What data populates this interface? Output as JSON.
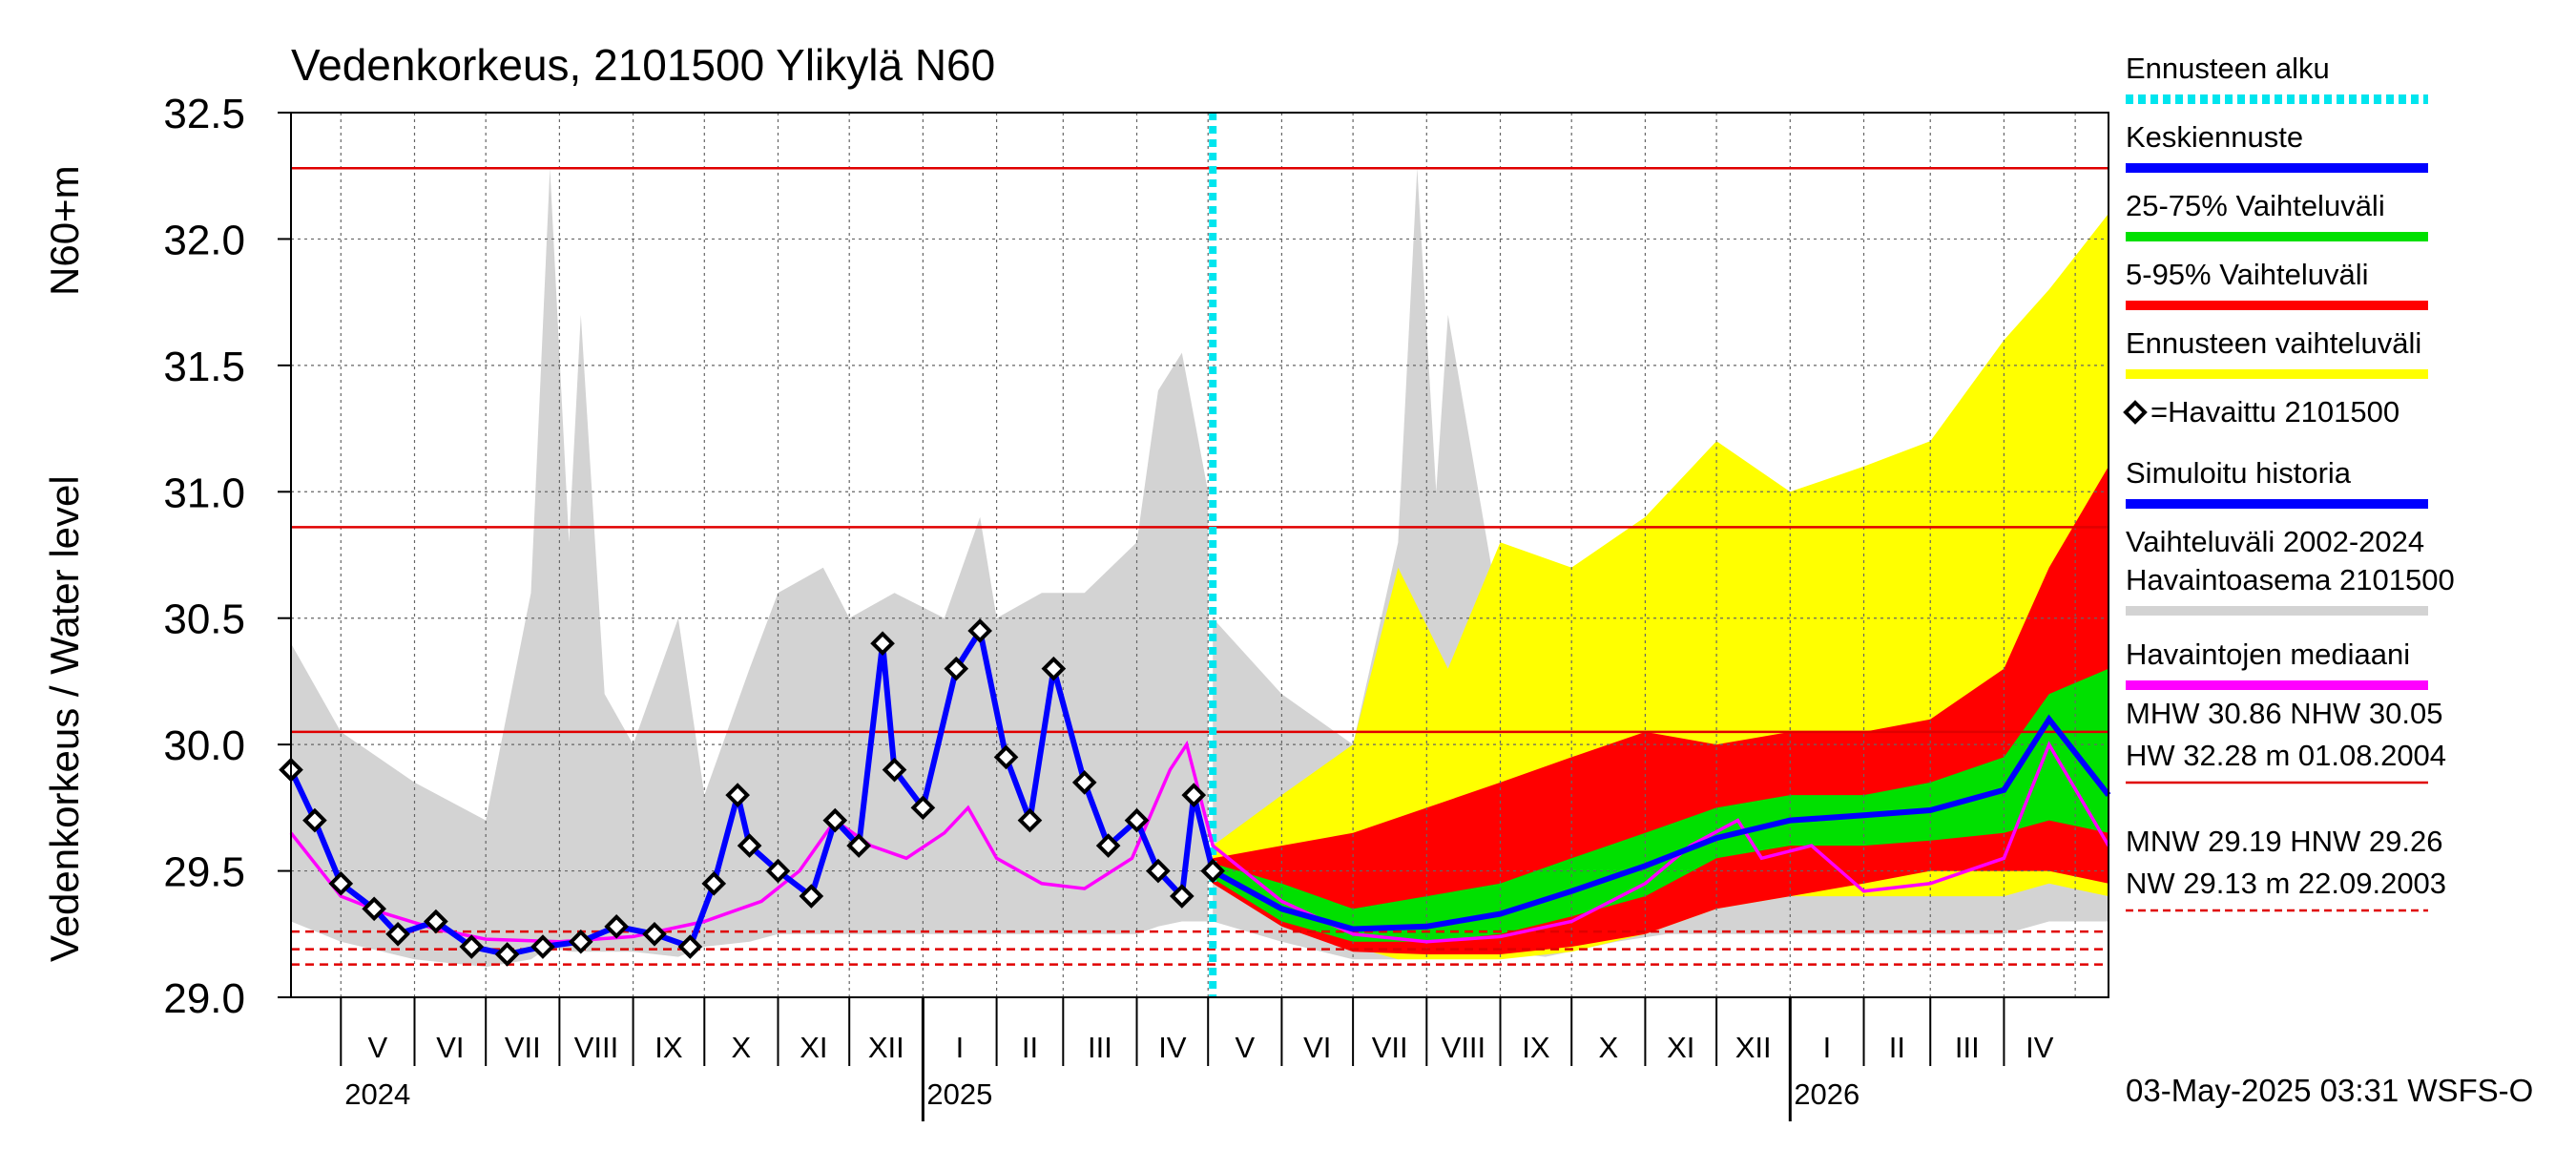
{
  "chart_data": {
    "type": "line",
    "title": "Vedenkorkeus, 2101500 Ylikylä N60",
    "ylabel_left": "Vedenkorkeus / Water level",
    "ylabel_unit": "N60+m",
    "ylim": [
      29.0,
      32.5
    ],
    "y_ticks": [
      "29.0",
      "29.5",
      "30.0",
      "30.5",
      "31.0",
      "31.5",
      "32.0",
      "32.5"
    ],
    "x_start": "2024-04-10",
    "x_end": "2026-05-15",
    "forecast_start": "2025-05-03",
    "month_labels": [
      "V",
      "VI",
      "VII",
      "VIII",
      "IX",
      "X",
      "XI",
      "XII",
      "I",
      "II",
      "III",
      "IV",
      "V",
      "VI",
      "VII",
      "VIII",
      "IX",
      "X",
      "XI",
      "XII",
      "I",
      "II",
      "III",
      "IV"
    ],
    "year_labels": [
      "2024",
      "2025",
      "2026"
    ],
    "reference_lines": {
      "HW": 32.28,
      "MHW": 30.86,
      "NHW": 30.05,
      "MNW": 29.19,
      "HNW": 29.26,
      "NW": 29.13
    },
    "legend": [
      {
        "label": "Ennusteen alku",
        "color": "#00e5ee",
        "style": "dotted"
      },
      {
        "label": "Keskiennuste",
        "color": "#0000ff",
        "style": "solid"
      },
      {
        "label": "25-75% Vaihteluväli",
        "color": "#00e000",
        "style": "solid"
      },
      {
        "label": "5-95% Vaihteluväli",
        "color": "#ff0000",
        "style": "solid"
      },
      {
        "label": "Ennusteen vaihteluväli",
        "color": "#ffff00",
        "style": "solid"
      },
      {
        "label": "=Havaittu 2101500",
        "color": "#000000",
        "style": "diamond"
      },
      {
        "label": "Simuloitu historia",
        "color": "#0000ff",
        "style": "solid"
      },
      {
        "label": "Vaihteluväli 2002-2024",
        "label2": " Havaintoasema 2101500",
        "color": "#d3d3d3",
        "style": "solid"
      },
      {
        "label": "Havaintojen mediaani",
        "color": "#ff00ff",
        "style": "solid"
      }
    ],
    "stats_text": [
      "MHW  30.86 NHW  30.05",
      "HW  32.28 m 01.08.2004",
      "MNW  29.19 HNW  29.26",
      "NW  29.13 m 22.09.2003"
    ],
    "footer": "03-May-2025 03:31 WSFS-O",
    "series": {
      "history_range": [
        [
          "2024-04-10",
          29.3,
          30.4
        ],
        [
          "2024-05-01",
          29.22,
          30.05
        ],
        [
          "2024-06-01",
          29.15,
          29.85
        ],
        [
          "2024-07-01",
          29.12,
          29.7
        ],
        [
          "2024-07-20",
          29.15,
          30.6
        ],
        [
          "2024-07-28",
          29.2,
          32.28
        ],
        [
          "2024-08-05",
          29.18,
          30.8
        ],
        [
          "2024-08-10",
          29.18,
          31.7
        ],
        [
          "2024-08-20",
          29.18,
          30.2
        ],
        [
          "2024-09-01",
          29.18,
          30.0
        ],
        [
          "2024-09-20",
          29.16,
          30.5
        ],
        [
          "2024-10-01",
          29.2,
          29.8
        ],
        [
          "2024-10-20",
          29.22,
          30.3
        ],
        [
          "2024-11-01",
          29.25,
          30.6
        ],
        [
          "2024-11-20",
          29.25,
          30.7
        ],
        [
          "2024-12-01",
          29.25,
          30.5
        ],
        [
          "2024-12-20",
          29.25,
          30.6
        ],
        [
          "2025-01-10",
          29.25,
          30.5
        ],
        [
          "2025-01-25",
          29.25,
          30.9
        ],
        [
          "2025-02-01",
          29.25,
          30.5
        ],
        [
          "2025-02-20",
          29.25,
          30.6
        ],
        [
          "2025-03-10",
          29.25,
          30.6
        ],
        [
          "2025-04-01",
          29.25,
          30.8
        ],
        [
          "2025-04-10",
          29.28,
          31.4
        ],
        [
          "2025-04-20",
          29.3,
          31.55
        ],
        [
          "2025-05-01",
          29.3,
          31.0
        ]
      ],
      "history_range_2": [
        [
          "2025-05-03",
          29.3,
          30.5
        ],
        [
          "2025-06-01",
          29.22,
          30.2
        ],
        [
          "2025-07-01",
          29.15,
          30.0
        ],
        [
          "2025-07-20",
          29.15,
          30.8
        ],
        [
          "2025-07-28",
          29.2,
          32.28
        ],
        [
          "2025-08-05",
          29.18,
          31.0
        ],
        [
          "2025-08-10",
          29.18,
          31.7
        ],
        [
          "2025-09-01",
          29.18,
          30.5
        ],
        [
          "2025-09-20",
          29.16,
          30.6
        ],
        [
          "2025-10-20",
          29.22,
          30.4
        ],
        [
          "2025-11-10",
          29.25,
          30.7
        ],
        [
          "2025-12-10",
          29.25,
          30.7
        ],
        [
          "2026-01-10",
          29.25,
          30.6
        ],
        [
          "2026-02-01",
          29.25,
          30.7
        ],
        [
          "2026-03-01",
          29.25,
          30.8
        ],
        [
          "2026-04-01",
          29.25,
          31.0
        ],
        [
          "2026-04-20",
          29.3,
          31.2
        ],
        [
          "2026-05-15",
          29.3,
          30.6
        ]
      ],
      "forecast_envelope": [
        [
          "2025-05-03",
          29.45,
          29.6
        ],
        [
          "2025-06-01",
          29.3,
          29.8
        ],
        [
          "2025-07-01",
          29.2,
          30.0
        ],
        [
          "2025-07-20",
          29.15,
          30.7
        ],
        [
          "2025-08-10",
          29.15,
          30.3
        ],
        [
          "2025-09-01",
          29.15,
          30.8
        ],
        [
          "2025-10-01",
          29.18,
          30.7
        ],
        [
          "2025-11-01",
          29.25,
          30.9
        ],
        [
          "2025-12-01",
          29.35,
          31.2
        ],
        [
          "2026-01-01",
          29.4,
          31.0
        ],
        [
          "2026-02-01",
          29.4,
          31.1
        ],
        [
          "2026-03-01",
          29.4,
          31.2
        ],
        [
          "2026-04-01",
          29.4,
          31.6
        ],
        [
          "2026-04-20",
          29.45,
          31.8
        ],
        [
          "2026-05-15",
          29.4,
          32.1
        ]
      ],
      "p5_95": [
        [
          "2025-05-03",
          29.45,
          29.55
        ],
        [
          "2025-06-01",
          29.28,
          29.6
        ],
        [
          "2025-07-01",
          29.18,
          29.65
        ],
        [
          "2025-08-01",
          29.17,
          29.75
        ],
        [
          "2025-09-01",
          29.17,
          29.85
        ],
        [
          "2025-10-01",
          29.2,
          29.95
        ],
        [
          "2025-11-01",
          29.25,
          30.05
        ],
        [
          "2025-12-01",
          29.35,
          30.0
        ],
        [
          "2026-01-01",
          29.4,
          30.05
        ],
        [
          "2026-02-01",
          29.45,
          30.05
        ],
        [
          "2026-03-01",
          29.5,
          30.1
        ],
        [
          "2026-04-01",
          29.5,
          30.3
        ],
        [
          "2026-04-20",
          29.5,
          30.7
        ],
        [
          "2026-05-15",
          29.45,
          31.1
        ]
      ],
      "p25_75": [
        [
          "2025-05-03",
          29.47,
          29.53
        ],
        [
          "2025-06-01",
          29.3,
          29.45
        ],
        [
          "2025-07-01",
          29.22,
          29.35
        ],
        [
          "2025-08-01",
          29.22,
          29.4
        ],
        [
          "2025-09-01",
          29.25,
          29.45
        ],
        [
          "2025-10-01",
          29.32,
          29.55
        ],
        [
          "2025-11-01",
          29.4,
          29.65
        ],
        [
          "2025-12-01",
          29.55,
          29.75
        ],
        [
          "2026-01-01",
          29.6,
          29.8
        ],
        [
          "2026-02-01",
          29.6,
          29.8
        ],
        [
          "2026-03-01",
          29.62,
          29.85
        ],
        [
          "2026-04-01",
          29.65,
          29.95
        ],
        [
          "2026-04-20",
          29.7,
          30.2
        ],
        [
          "2026-05-15",
          29.65,
          30.3
        ]
      ],
      "mean_forecast": [
        [
          "2025-05-03",
          29.5
        ],
        [
          "2025-06-01",
          29.35
        ],
        [
          "2025-07-01",
          29.27
        ],
        [
          "2025-08-01",
          29.28
        ],
        [
          "2025-09-01",
          29.33
        ],
        [
          "2025-10-01",
          29.42
        ],
        [
          "2025-11-01",
          29.52
        ],
        [
          "2025-12-01",
          29.63
        ],
        [
          "2026-01-01",
          29.7
        ],
        [
          "2026-02-01",
          29.72
        ],
        [
          "2026-03-01",
          29.74
        ],
        [
          "2026-04-01",
          29.82
        ],
        [
          "2026-04-20",
          30.1
        ],
        [
          "2026-05-15",
          29.8
        ]
      ],
      "median": [
        [
          "2024-04-10",
          29.65
        ],
        [
          "2024-05-01",
          29.4
        ],
        [
          "2024-05-20",
          29.33
        ],
        [
          "2024-06-10",
          29.27
        ],
        [
          "2024-07-01",
          29.23
        ],
        [
          "2024-08-01",
          29.22
        ],
        [
          "2024-09-01",
          29.24
        ],
        [
          "2024-10-01",
          29.3
        ],
        [
          "2024-10-25",
          29.38
        ],
        [
          "2024-11-10",
          29.5
        ],
        [
          "2024-11-25",
          29.7
        ],
        [
          "2024-12-10",
          29.6
        ],
        [
          "2024-12-25",
          29.55
        ],
        [
          "2025-01-10",
          29.65
        ],
        [
          "2025-01-20",
          29.75
        ],
        [
          "2025-02-01",
          29.55
        ],
        [
          "2025-02-20",
          29.45
        ],
        [
          "2025-03-10",
          29.43
        ],
        [
          "2025-03-30",
          29.55
        ],
        [
          "2025-04-15",
          29.9
        ],
        [
          "2025-04-22",
          30.0
        ],
        [
          "2025-05-03",
          29.6
        ],
        [
          "2025-06-01",
          29.38
        ],
        [
          "2025-07-01",
          29.25
        ],
        [
          "2025-08-01",
          29.22
        ],
        [
          "2025-09-01",
          29.24
        ],
        [
          "2025-10-01",
          29.3
        ],
        [
          "2025-11-01",
          29.45
        ],
        [
          "2025-11-20",
          29.6
        ],
        [
          "2025-12-10",
          29.7
        ],
        [
          "2025-12-20",
          29.55
        ],
        [
          "2026-01-10",
          29.6
        ],
        [
          "2026-02-01",
          29.42
        ],
        [
          "2026-03-01",
          29.45
        ],
        [
          "2026-04-01",
          29.55
        ],
        [
          "2026-04-20",
          30.0
        ],
        [
          "2026-05-15",
          29.6
        ]
      ],
      "observed": [
        [
          "2024-04-10",
          29.9
        ],
        [
          "2024-04-20",
          29.7
        ],
        [
          "2024-05-01",
          29.45
        ],
        [
          "2024-05-15",
          29.35
        ],
        [
          "2024-05-25",
          29.25
        ],
        [
          "2024-06-10",
          29.3
        ],
        [
          "2024-06-25",
          29.2
        ],
        [
          "2024-07-10",
          29.17
        ],
        [
          "2024-07-25",
          29.2
        ],
        [
          "2024-08-10",
          29.22
        ],
        [
          "2024-08-25",
          29.28
        ],
        [
          "2024-09-10",
          29.25
        ],
        [
          "2024-09-25",
          29.2
        ],
        [
          "2024-10-05",
          29.45
        ],
        [
          "2024-10-15",
          29.8
        ],
        [
          "2024-10-20",
          29.6
        ],
        [
          "2024-11-01",
          29.5
        ],
        [
          "2024-11-15",
          29.4
        ],
        [
          "2024-11-25",
          29.7
        ],
        [
          "2024-12-05",
          29.6
        ],
        [
          "2024-12-15",
          30.4
        ],
        [
          "2024-12-20",
          29.9
        ],
        [
          "2025-01-01",
          29.75
        ],
        [
          "2025-01-15",
          30.3
        ],
        [
          "2025-01-25",
          30.45
        ],
        [
          "2025-02-05",
          29.95
        ],
        [
          "2025-02-15",
          29.7
        ],
        [
          "2025-02-25",
          30.3
        ],
        [
          "2025-03-10",
          29.85
        ],
        [
          "2025-03-20",
          29.6
        ],
        [
          "2025-04-01",
          29.7
        ],
        [
          "2025-04-10",
          29.5
        ],
        [
          "2025-04-20",
          29.4
        ],
        [
          "2025-04-25",
          29.8
        ],
        [
          "2025-05-03",
          29.5
        ]
      ]
    }
  }
}
